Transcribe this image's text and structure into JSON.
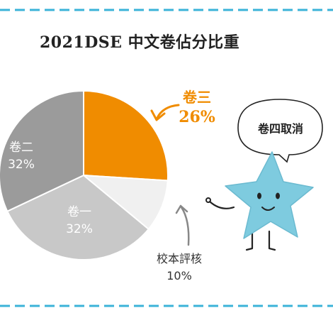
{
  "chart_data": {
    "type": "pie",
    "title": "2021DSE 中文卷佔分比重",
    "categories": [
      "卷三",
      "校本評核",
      "卷一",
      "卷二"
    ],
    "values": [
      26,
      10,
      32,
      32
    ],
    "labels": [
      {
        "name": "卷三",
        "value_label": "26%"
      },
      {
        "name": "校本評核",
        "value_label": "10%"
      },
      {
        "name": "卷一",
        "value_label": "32%"
      },
      {
        "name": "卷二",
        "value_label": "32%"
      }
    ],
    "colors": [
      "#f08c00",
      "#f0f0f0",
      "#c8c8c8",
      "#9b9b9b"
    ],
    "label_colors": [
      "#f08c00",
      "#333333",
      "#ffffff",
      "#ffffff"
    ]
  },
  "callout": {
    "text": "卷四取消"
  },
  "theme": {
    "dash_color": "#3bb3d8",
    "star_color": "#7ecbdf",
    "arrow_color": "#f08c00",
    "arrow_gray": "#888888"
  }
}
